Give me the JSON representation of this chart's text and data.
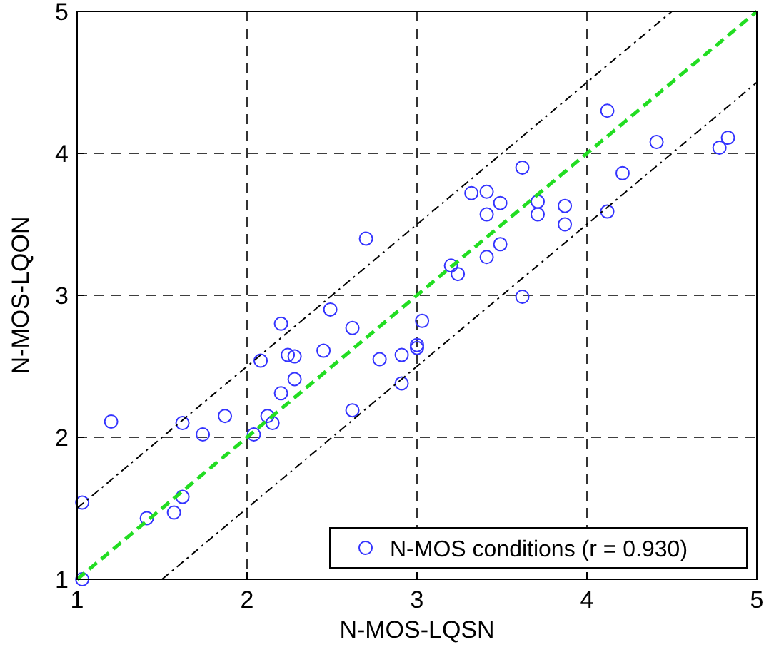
{
  "chart_data": {
    "type": "scatter",
    "xlabel": "N-MOS-LQSN",
    "ylabel": "N-MOS-LQON",
    "xlim": [
      1,
      5
    ],
    "ylim": [
      1,
      5
    ],
    "xticks": [
      1,
      2,
      3,
      4,
      5
    ],
    "yticks": [
      1,
      2,
      3,
      4,
      5
    ],
    "grid": true,
    "legend": "bottom right",
    "series": [
      {
        "name": "N-MOS conditions (r = 0.930)",
        "marker": "circle",
        "color": "#3333ff",
        "x": [
          1.03,
          1.03,
          1.2,
          1.41,
          1.57,
          1.62,
          1.62,
          1.74,
          1.87,
          2.04,
          2.08,
          2.12,
          2.15,
          2.2,
          2.2,
          2.24,
          2.28,
          2.28,
          2.49,
          2.45,
          2.62,
          2.62,
          2.78,
          2.91,
          2.91,
          3.0,
          3.0,
          3.03,
          2.7,
          3.2,
          3.24,
          3.32,
          3.41,
          3.49,
          3.41,
          3.49,
          3.41,
          3.62,
          3.71,
          3.71,
          3.62,
          3.87,
          3.87,
          4.12,
          4.12,
          4.21,
          4.41,
          4.78,
          4.83
        ],
        "values": [
          1.0,
          1.54,
          2.11,
          1.43,
          1.47,
          1.58,
          2.1,
          2.02,
          2.15,
          2.02,
          2.54,
          2.15,
          2.1,
          2.8,
          2.31,
          2.58,
          2.57,
          2.41,
          2.9,
          2.61,
          2.77,
          2.19,
          2.55,
          2.58,
          2.38,
          2.65,
          2.63,
          2.82,
          3.4,
          3.21,
          3.15,
          3.72,
          3.73,
          3.65,
          3.57,
          3.36,
          3.27,
          3.9,
          3.66,
          3.57,
          2.99,
          3.63,
          3.5,
          4.3,
          3.59,
          3.86,
          4.08,
          4.04,
          4.11
        ]
      },
      {
        "type": "line",
        "color": "#22dd22",
        "line_style": "dashed",
        "marker": "none",
        "x": [
          1,
          5
        ],
        "values": [
          1,
          5
        ]
      },
      {
        "type": "line",
        "color": "#000000",
        "line_style": "dashdot",
        "marker": "none",
        "x": [
          1,
          4.5
        ],
        "values": [
          1.5,
          5
        ]
      },
      {
        "type": "line",
        "color": "#000000",
        "line_style": "dashdot",
        "marker": "none",
        "x": [
          1.5,
          5
        ],
        "values": [
          1,
          4.5
        ]
      }
    ]
  }
}
